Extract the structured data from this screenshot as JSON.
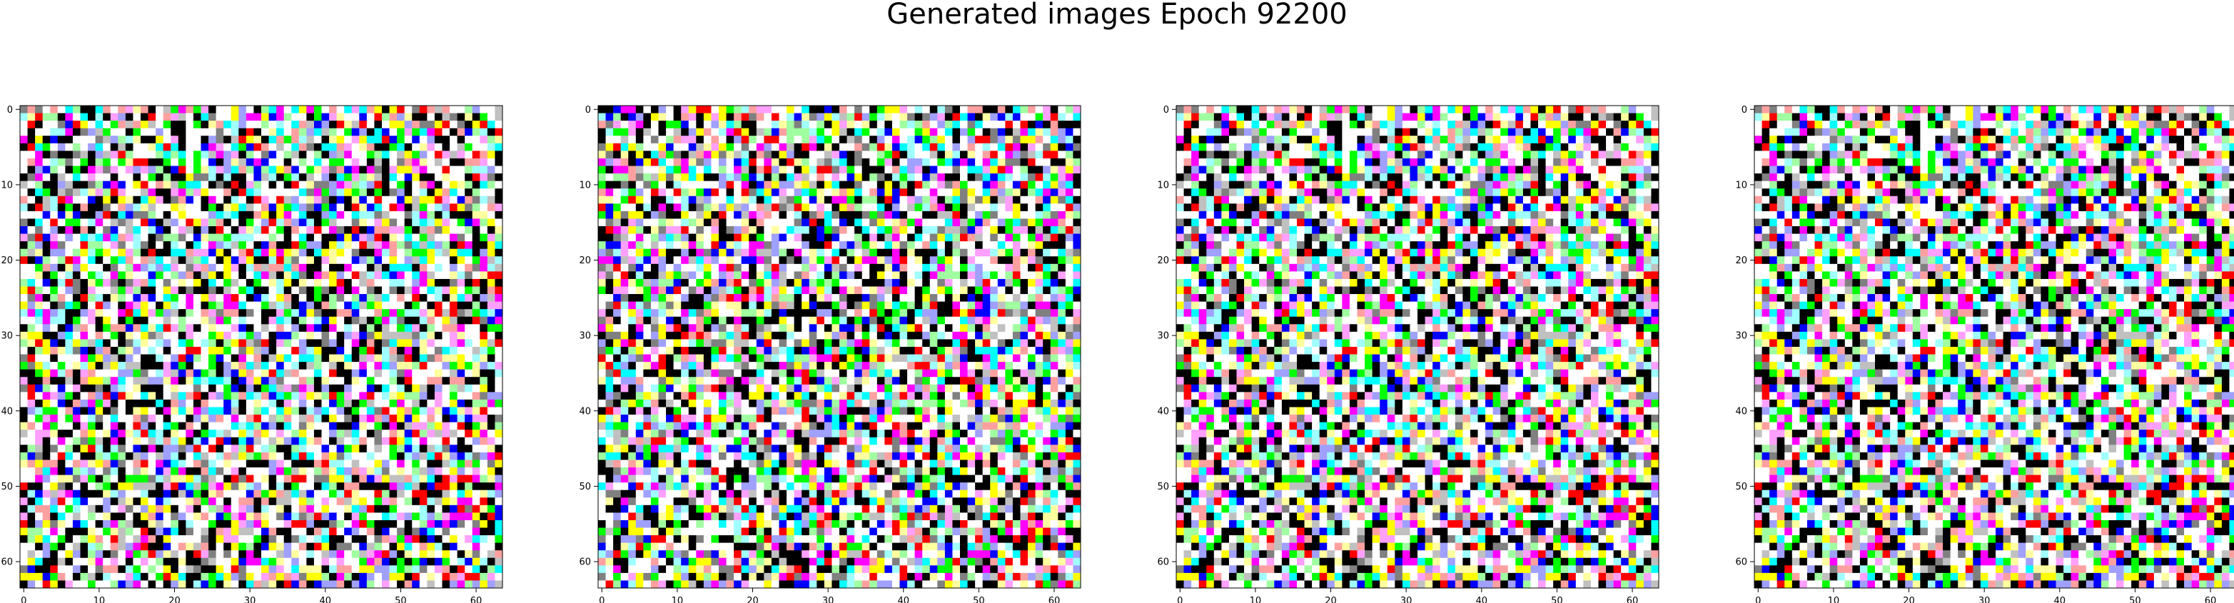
{
  "title": "Generated images Epoch 92200",
  "chart_data": [
    {
      "type": "heatmap",
      "panel": "image-1",
      "grid_size": [
        64,
        64
      ],
      "xlim": [
        -0.5,
        63.5
      ],
      "ylim": [
        63.5,
        -0.5
      ],
      "x_ticks": [
        0,
        10,
        20,
        30,
        40,
        50,
        60
      ],
      "y_ticks": [
        0,
        10,
        20,
        30,
        40,
        50,
        60
      ],
      "x_tick_labels": [
        "0",
        "10",
        "20",
        "30",
        "40",
        "50",
        "60"
      ],
      "y_tick_labels": [
        "0",
        "10",
        "20",
        "30",
        "40",
        "50",
        "60"
      ],
      "palette": [
        "#000000",
        "#ff0000",
        "#00ff00",
        "#0000ff",
        "#ffff00",
        "#ff00ff",
        "#00ffff",
        "#ffffff",
        "#808080",
        "#ffa0a0",
        "#a0ffa0",
        "#a0a0ff",
        "#ffffa0",
        "#ffa0ff",
        "#a0ffff",
        "#c0c0c0"
      ],
      "seed": 11
    },
    {
      "type": "heatmap",
      "panel": "image-2",
      "grid_size": [
        64,
        64
      ],
      "xlim": [
        -0.5,
        63.5
      ],
      "ylim": [
        63.5,
        -0.5
      ],
      "x_ticks": [
        0,
        10,
        20,
        30,
        40,
        50,
        60
      ],
      "y_ticks": [
        0,
        10,
        20,
        30,
        40,
        50,
        60
      ],
      "x_tick_labels": [
        "0",
        "10",
        "20",
        "30",
        "40",
        "50",
        "60"
      ],
      "y_tick_labels": [
        "0",
        "10",
        "20",
        "30",
        "40",
        "50",
        "60"
      ],
      "palette": [
        "#000000",
        "#ff0000",
        "#00ff00",
        "#0000ff",
        "#ffff00",
        "#ff00ff",
        "#00ffff",
        "#ffffff",
        "#808080",
        "#ffa0a0",
        "#a0ffa0",
        "#a0a0ff",
        "#ffffa0",
        "#ffa0ff",
        "#a0ffff",
        "#c0c0c0"
      ],
      "seed": 29
    },
    {
      "type": "heatmap",
      "panel": "image-3",
      "grid_size": [
        64,
        64
      ],
      "xlim": [
        -0.5,
        63.5
      ],
      "ylim": [
        63.5,
        -0.5
      ],
      "x_ticks": [
        0,
        10,
        20,
        30,
        40,
        50,
        60
      ],
      "y_ticks": [
        0,
        10,
        20,
        30,
        40,
        50,
        60
      ],
      "x_tick_labels": [
        "0",
        "10",
        "20",
        "30",
        "40",
        "50",
        "60"
      ],
      "y_tick_labels": [
        "0",
        "10",
        "20",
        "30",
        "40",
        "50",
        "60"
      ],
      "palette": [
        "#000000",
        "#ff0000",
        "#00ff00",
        "#0000ff",
        "#ffff00",
        "#ff00ff",
        "#00ffff",
        "#ffffff",
        "#808080",
        "#ffa0a0",
        "#a0ffa0",
        "#a0a0ff",
        "#ffffa0",
        "#ffa0ff",
        "#a0ffff",
        "#c0c0c0"
      ],
      "seed": 11
    },
    {
      "type": "heatmap",
      "panel": "image-4",
      "grid_size": [
        64,
        64
      ],
      "xlim": [
        -0.5,
        63.5
      ],
      "ylim": [
        63.5,
        -0.5
      ],
      "x_ticks": [
        0,
        10,
        20,
        30,
        40,
        50,
        60
      ],
      "y_ticks": [
        0,
        10,
        20,
        30,
        40,
        50,
        60
      ],
      "x_tick_labels": [
        "0",
        "10",
        "20",
        "30",
        "40",
        "50",
        "60"
      ],
      "y_tick_labels": [
        "0",
        "10",
        "20",
        "30",
        "40",
        "50",
        "60"
      ],
      "palette": [
        "#000000",
        "#ff0000",
        "#00ff00",
        "#0000ff",
        "#ffff00",
        "#ff00ff",
        "#00ffff",
        "#ffffff",
        "#808080",
        "#ffa0a0",
        "#a0ffa0",
        "#a0a0ff",
        "#ffffa0",
        "#ffa0ff",
        "#a0ffff",
        "#c0c0c0"
      ],
      "seed": 11
    }
  ]
}
